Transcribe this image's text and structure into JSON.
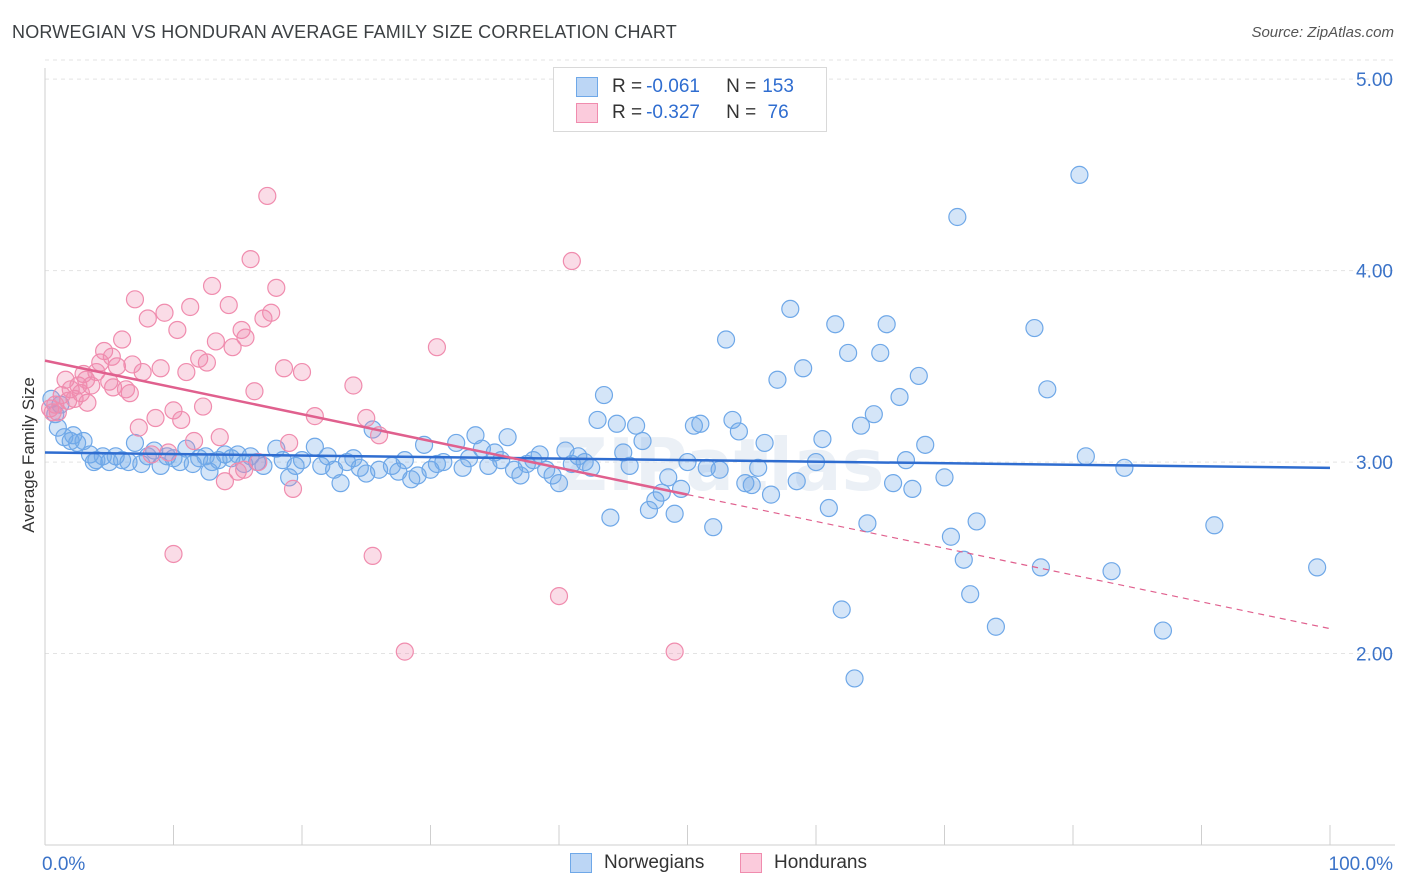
{
  "title": "NORWEGIAN VS HONDURAN AVERAGE FAMILY SIZE CORRELATION CHART",
  "source": "Source: ZipAtlas.com",
  "watermark": "ZIPatlas",
  "legend": {
    "row1": {
      "r_label": "R = ",
      "r_value": "-0.061",
      "n_label": "N = ",
      "n_value": "153"
    },
    "row2": {
      "r_label": "R = ",
      "r_value": "-0.327",
      "n_label": "N = ",
      "n_value": " 76"
    }
  },
  "bottom_legend": {
    "series1": "Norwegians",
    "series2": "Hondurans"
  },
  "colors": {
    "norwegian": "#6fa8e8",
    "honduran": "#f08cae",
    "norwegian_line": "#2f6dd0",
    "honduran_line": "#e0608e",
    "tick_label": "#3b73c8"
  },
  "chart_data": {
    "type": "scatter",
    "title": "NORWEGIAN VS HONDURAN AVERAGE FAMILY SIZE CORRELATION CHART",
    "xlabel": "",
    "ylabel": "Average Family Size",
    "x_tick_labels": [
      "0.0%",
      "100.0%"
    ],
    "y_tick_labels": [
      "2.00",
      "3.00",
      "4.00",
      "5.00"
    ],
    "xlim": [
      0,
      100
    ],
    "ylim": [
      1.0,
      5.1
    ],
    "grid": true,
    "legend_position": "top-center",
    "series": [
      {
        "name": "Norwegians",
        "trend": {
          "x": [
            0,
            100
          ],
          "y": [
            3.05,
            2.97
          ]
        },
        "points": [
          [
            0.5,
            3.33
          ],
          [
            0.8,
            3.25
          ],
          [
            1.0,
            3.18
          ],
          [
            1.5,
            3.13
          ],
          [
            2.0,
            3.11
          ],
          [
            2.5,
            3.1
          ],
          [
            3.0,
            3.11
          ],
          [
            3.5,
            3.04
          ],
          [
            4.0,
            3.01
          ],
          [
            4.5,
            3.03
          ],
          [
            5.0,
            3.0
          ],
          [
            5.5,
            3.03
          ],
          [
            6.0,
            3.01
          ],
          [
            6.5,
            3.0
          ],
          [
            7.0,
            3.1
          ],
          [
            7.5,
            2.99
          ],
          [
            8.0,
            3.03
          ],
          [
            8.5,
            3.06
          ],
          [
            9.0,
            2.98
          ],
          [
            9.5,
            3.03
          ],
          [
            10.0,
            3.02
          ],
          [
            10.5,
            3.0
          ],
          [
            11.0,
            3.07
          ],
          [
            11.5,
            2.99
          ],
          [
            12.0,
            3.02
          ],
          [
            12.5,
            3.03
          ],
          [
            13.0,
            3.0
          ],
          [
            13.5,
            3.01
          ],
          [
            14.0,
            3.04
          ],
          [
            14.5,
            3.02
          ],
          [
            15.0,
            3.04
          ],
          [
            15.5,
            2.99
          ],
          [
            16.0,
            3.03
          ],
          [
            16.5,
            3.0
          ],
          [
            17.0,
            2.98
          ],
          [
            18.0,
            3.07
          ],
          [
            18.5,
            3.01
          ],
          [
            19.0,
            2.92
          ],
          [
            19.5,
            2.98
          ],
          [
            20.0,
            3.01
          ],
          [
            21.0,
            3.08
          ],
          [
            21.5,
            2.98
          ],
          [
            22.0,
            3.03
          ],
          [
            22.5,
            2.96
          ],
          [
            23.0,
            2.89
          ],
          [
            23.5,
            3.0
          ],
          [
            24.0,
            3.02
          ],
          [
            24.5,
            2.97
          ],
          [
            25.0,
            2.94
          ],
          [
            25.5,
            3.17
          ],
          [
            26.0,
            2.96
          ],
          [
            27.0,
            2.98
          ],
          [
            27.5,
            2.95
          ],
          [
            28.0,
            3.01
          ],
          [
            28.5,
            2.91
          ],
          [
            29.0,
            2.93
          ],
          [
            29.5,
            3.09
          ],
          [
            30.0,
            2.96
          ],
          [
            30.5,
            2.99
          ],
          [
            31.0,
            3.0
          ],
          [
            32.0,
            3.1
          ],
          [
            32.5,
            2.97
          ],
          [
            33.0,
            3.02
          ],
          [
            33.5,
            3.14
          ],
          [
            34.0,
            3.07
          ],
          [
            34.5,
            2.98
          ],
          [
            35.0,
            3.05
          ],
          [
            35.5,
            3.01
          ],
          [
            36.0,
            3.13
          ],
          [
            36.5,
            2.96
          ],
          [
            37.0,
            2.93
          ],
          [
            37.5,
            2.99
          ],
          [
            38.0,
            3.01
          ],
          [
            38.5,
            3.04
          ],
          [
            39.0,
            2.96
          ],
          [
            39.5,
            2.93
          ],
          [
            40.0,
            2.89
          ],
          [
            40.5,
            3.06
          ],
          [
            41.0,
            2.99
          ],
          [
            41.5,
            3.03
          ],
          [
            42.0,
            3.0
          ],
          [
            42.5,
            2.97
          ],
          [
            43.0,
            3.22
          ],
          [
            43.5,
            3.35
          ],
          [
            44.0,
            2.71
          ],
          [
            44.5,
            3.2
          ],
          [
            45.0,
            3.05
          ],
          [
            45.5,
            2.98
          ],
          [
            46.0,
            3.19
          ],
          [
            46.5,
            3.11
          ],
          [
            47.0,
            2.75
          ],
          [
            47.5,
            2.8
          ],
          [
            48.0,
            2.84
          ],
          [
            48.5,
            2.92
          ],
          [
            49.0,
            2.73
          ],
          [
            49.5,
            2.86
          ],
          [
            50.0,
            3.0
          ],
          [
            50.5,
            3.19
          ],
          [
            51.0,
            3.2
          ],
          [
            51.5,
            2.97
          ],
          [
            52.0,
            2.66
          ],
          [
            52.5,
            2.96
          ],
          [
            53.0,
            3.64
          ],
          [
            53.5,
            3.22
          ],
          [
            54.0,
            3.16
          ],
          [
            54.5,
            2.89
          ],
          [
            55.0,
            2.88
          ],
          [
            55.5,
            2.97
          ],
          [
            56.0,
            3.1
          ],
          [
            56.5,
            2.83
          ],
          [
            57.0,
            3.43
          ],
          [
            58.0,
            3.8
          ],
          [
            58.5,
            2.9
          ],
          [
            59.0,
            3.49
          ],
          [
            60.0,
            3.0
          ],
          [
            60.5,
            3.12
          ],
          [
            61.0,
            2.76
          ],
          [
            61.5,
            3.72
          ],
          [
            62.0,
            2.23
          ],
          [
            62.5,
            3.57
          ],
          [
            63.0,
            1.87
          ],
          [
            63.5,
            3.19
          ],
          [
            64.0,
            2.68
          ],
          [
            64.5,
            3.25
          ],
          [
            65.0,
            3.57
          ],
          [
            65.5,
            3.72
          ],
          [
            66.0,
            2.89
          ],
          [
            66.5,
            3.34
          ],
          [
            67.0,
            3.01
          ],
          [
            67.5,
            2.86
          ],
          [
            68.0,
            3.45
          ],
          [
            68.5,
            3.09
          ],
          [
            70.0,
            2.92
          ],
          [
            70.5,
            2.61
          ],
          [
            71.0,
            4.28
          ],
          [
            71.5,
            2.49
          ],
          [
            72.0,
            2.31
          ],
          [
            72.5,
            2.69
          ],
          [
            74.0,
            2.14
          ],
          [
            77.0,
            3.7
          ],
          [
            77.5,
            2.45
          ],
          [
            78.0,
            3.38
          ],
          [
            80.5,
            4.5
          ],
          [
            81.0,
            3.03
          ],
          [
            83.0,
            2.43
          ],
          [
            84.0,
            2.97
          ],
          [
            87.0,
            2.12
          ],
          [
            91.0,
            2.67
          ],
          [
            99.0,
            2.45
          ],
          [
            1.2,
            3.3
          ],
          [
            2.2,
            3.14
          ],
          [
            3.8,
            3.0
          ],
          [
            12.8,
            2.95
          ]
        ]
      },
      {
        "name": "Hondurans",
        "trend": {
          "x": [
            0,
            50
          ],
          "y": [
            3.53,
            2.83
          ]
        },
        "trend_dashed": {
          "x": [
            50,
            100
          ],
          "y": [
            2.83,
            2.13
          ]
        },
        "points": [
          [
            0.4,
            3.28
          ],
          [
            0.8,
            3.3
          ],
          [
            1.0,
            3.26
          ],
          [
            1.3,
            3.35
          ],
          [
            1.6,
            3.43
          ],
          [
            2.0,
            3.38
          ],
          [
            2.3,
            3.33
          ],
          [
            2.6,
            3.4
          ],
          [
            3.0,
            3.46
          ],
          [
            3.3,
            3.31
          ],
          [
            3.6,
            3.4
          ],
          [
            4.0,
            3.47
          ],
          [
            4.3,
            3.52
          ],
          [
            4.6,
            3.58
          ],
          [
            5.0,
            3.42
          ],
          [
            5.3,
            3.39
          ],
          [
            5.6,
            3.5
          ],
          [
            6.0,
            3.64
          ],
          [
            6.3,
            3.38
          ],
          [
            6.6,
            3.36
          ],
          [
            7.0,
            3.85
          ],
          [
            7.3,
            3.18
          ],
          [
            7.6,
            3.47
          ],
          [
            8.0,
            3.75
          ],
          [
            8.3,
            3.04
          ],
          [
            8.6,
            3.23
          ],
          [
            9.0,
            3.49
          ],
          [
            9.3,
            3.78
          ],
          [
            9.6,
            3.05
          ],
          [
            10.0,
            3.27
          ],
          [
            10.3,
            3.69
          ],
          [
            10.6,
            3.22
          ],
          [
            11.0,
            3.47
          ],
          [
            11.3,
            3.81
          ],
          [
            11.6,
            3.11
          ],
          [
            12.0,
            3.54
          ],
          [
            12.3,
            3.29
          ],
          [
            12.6,
            3.52
          ],
          [
            13.0,
            3.92
          ],
          [
            13.3,
            3.63
          ],
          [
            13.6,
            3.13
          ],
          [
            14.0,
            2.9
          ],
          [
            14.3,
            3.82
          ],
          [
            14.6,
            3.6
          ],
          [
            15.0,
            2.95
          ],
          [
            15.3,
            3.69
          ],
          [
            15.6,
            3.65
          ],
          [
            16.0,
            4.06
          ],
          [
            16.3,
            3.37
          ],
          [
            16.6,
            3.0
          ],
          [
            17.0,
            3.75
          ],
          [
            17.3,
            4.39
          ],
          [
            17.6,
            3.78
          ],
          [
            18.0,
            3.91
          ],
          [
            18.6,
            3.49
          ],
          [
            19.0,
            3.1
          ],
          [
            19.3,
            2.86
          ],
          [
            20.0,
            3.47
          ],
          [
            21.0,
            3.24
          ],
          [
            24.0,
            3.4
          ],
          [
            25.0,
            3.23
          ],
          [
            25.5,
            2.51
          ],
          [
            26.0,
            3.14
          ],
          [
            28.0,
            2.01
          ],
          [
            30.5,
            3.6
          ],
          [
            40.0,
            2.3
          ],
          [
            41.0,
            4.05
          ],
          [
            49.0,
            2.01
          ],
          [
            10.0,
            2.52
          ],
          [
            15.5,
            2.96
          ],
          [
            5.2,
            3.55
          ],
          [
            3.2,
            3.43
          ],
          [
            2.8,
            3.36
          ],
          [
            6.8,
            3.51
          ],
          [
            1.8,
            3.32
          ],
          [
            0.6,
            3.26
          ]
        ]
      }
    ]
  }
}
